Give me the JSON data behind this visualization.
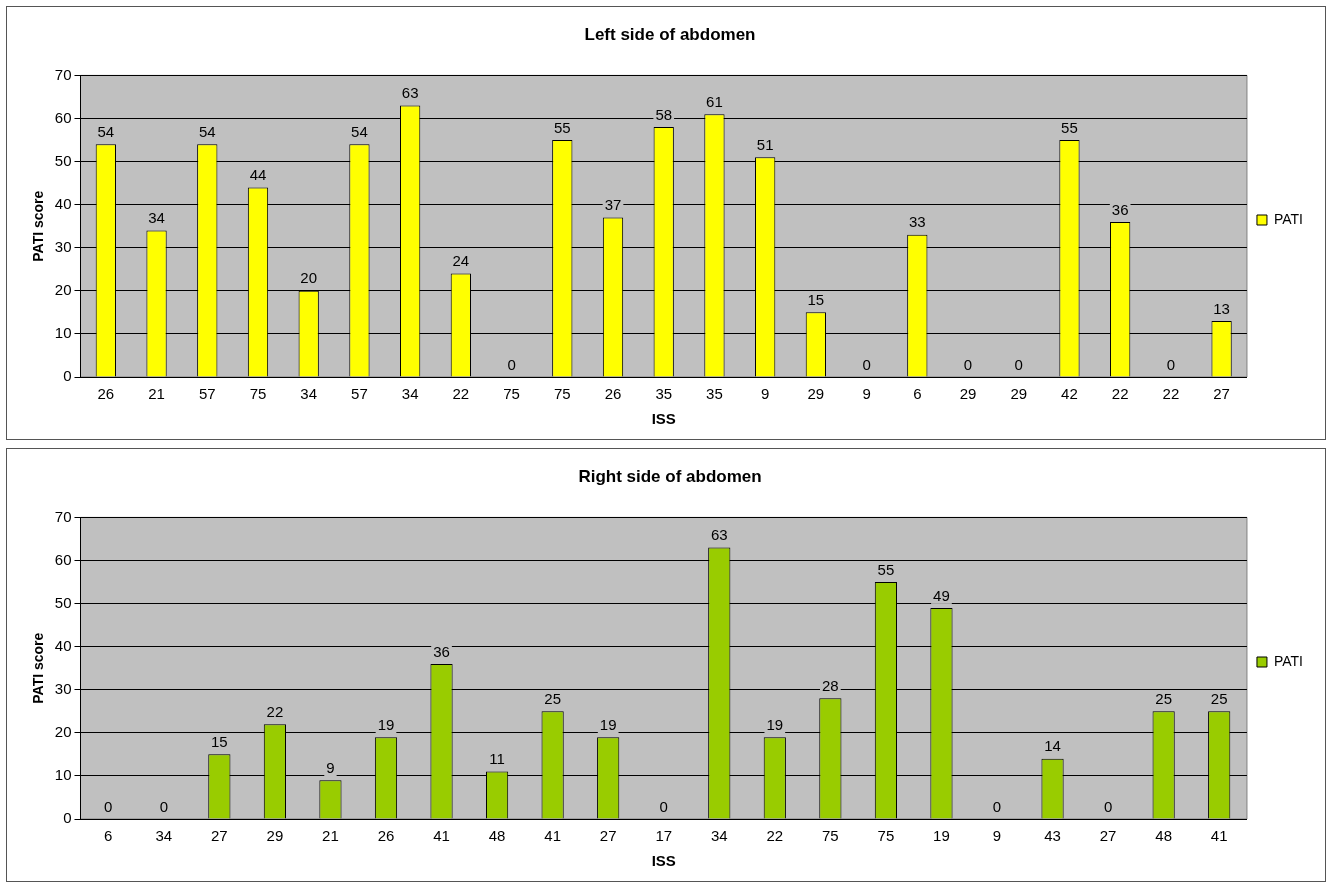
{
  "chart_data": [
    {
      "type": "bar",
      "title": "Left side of abdomen",
      "xlabel": "ISS",
      "ylabel": "PATI score",
      "categories": [
        "26",
        "21",
        "57",
        "75",
        "34",
        "57",
        "34",
        "22",
        "75",
        "75",
        "26",
        "35",
        "35",
        "9",
        "29",
        "9",
        "6",
        "29",
        "29",
        "42",
        "22",
        "22",
        "27"
      ],
      "series": [
        {
          "name": "PATI",
          "color": "#ffff00",
          "values": [
            54,
            34,
            54,
            44,
            20,
            54,
            63,
            24,
            0,
            55,
            37,
            58,
            61,
            51,
            15,
            0,
            33,
            0,
            0,
            55,
            36,
            0,
            13
          ]
        }
      ],
      "ylim": [
        0,
        70
      ],
      "yticks": [
        0,
        10,
        20,
        30,
        40,
        50,
        60,
        70
      ],
      "grid": "y",
      "legend": "right",
      "data_labels": true
    },
    {
      "type": "bar",
      "title": "Right side of abdomen",
      "xlabel": "ISS",
      "ylabel": "PATI score",
      "categories": [
        "6",
        "34",
        "27",
        "29",
        "21",
        "26",
        "41",
        "48",
        "41",
        "27",
        "17",
        "34",
        "22",
        "75",
        "75",
        "19",
        "9",
        "43",
        "27",
        "48",
        "41"
      ],
      "series": [
        {
          "name": "PATI",
          "color": "#99cc00",
          "values": [
            0,
            0,
            15,
            22,
            9,
            19,
            36,
            11,
            25,
            19,
            0,
            63,
            19,
            28,
            55,
            49,
            0,
            14,
            0,
            25,
            25
          ]
        }
      ],
      "ylim": [
        0,
        70
      ],
      "yticks": [
        0,
        10,
        20,
        30,
        40,
        50,
        60,
        70
      ],
      "grid": "y",
      "legend": "right",
      "data_labels": true
    }
  ]
}
